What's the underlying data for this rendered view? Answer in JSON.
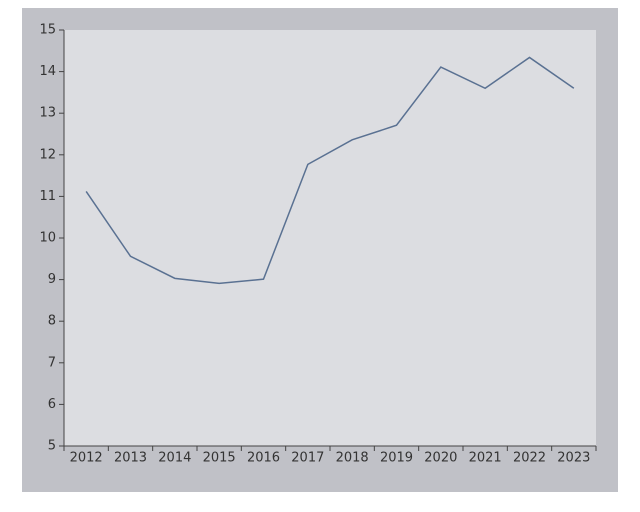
{
  "chart_data": {
    "type": "line",
    "categories": [
      "2012",
      "2013",
      "2014",
      "2015",
      "2016",
      "2017",
      "2018",
      "2019",
      "2020",
      "2021",
      "2022",
      "2023"
    ],
    "series": [
      {
        "color": "#5a7192",
        "values": [
          11.12,
          9.56,
          9.03,
          8.91,
          9.01,
          11.77,
          12.36,
          12.71,
          14.11,
          13.6,
          14.34,
          13.6
        ]
      }
    ],
    "ylim": [
      5,
      15
    ],
    "yticks": [
      5,
      6,
      7,
      8,
      9,
      10,
      11,
      12,
      13,
      14,
      15
    ],
    "grid": false
  }
}
